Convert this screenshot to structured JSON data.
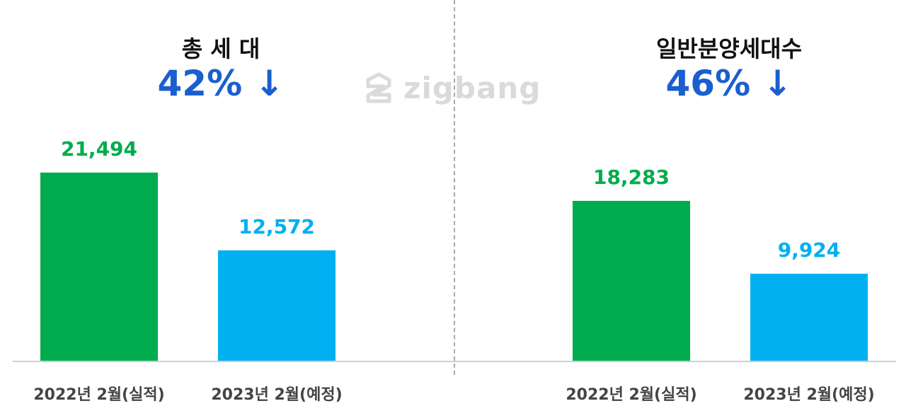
{
  "watermark": {
    "text": "zigbang",
    "icon": "zigbang-logo-icon"
  },
  "colors": {
    "actual": "#00ac4e",
    "planned": "#00b0f0",
    "change": "#1a5fd0",
    "title": "#111111"
  },
  "chart_data": [
    {
      "type": "bar",
      "title": "총 세 대",
      "change_label": "42% ↓",
      "categories": [
        "2022년 2월(실적)",
        "2023년 2월(예정)"
      ],
      "values": [
        21494,
        12572
      ],
      "value_labels": [
        "21,494",
        "12,572"
      ],
      "ylim": [
        0,
        24000
      ],
      "grid": false
    },
    {
      "type": "bar",
      "title": "일반분양세대수",
      "change_label": "46% ↓",
      "categories": [
        "2022년 2월(실적)",
        "2023년 2월(예정)"
      ],
      "values": [
        18283,
        9924
      ],
      "value_labels": [
        "18,283",
        "9,924"
      ],
      "ylim": [
        0,
        24000
      ],
      "grid": false
    }
  ]
}
